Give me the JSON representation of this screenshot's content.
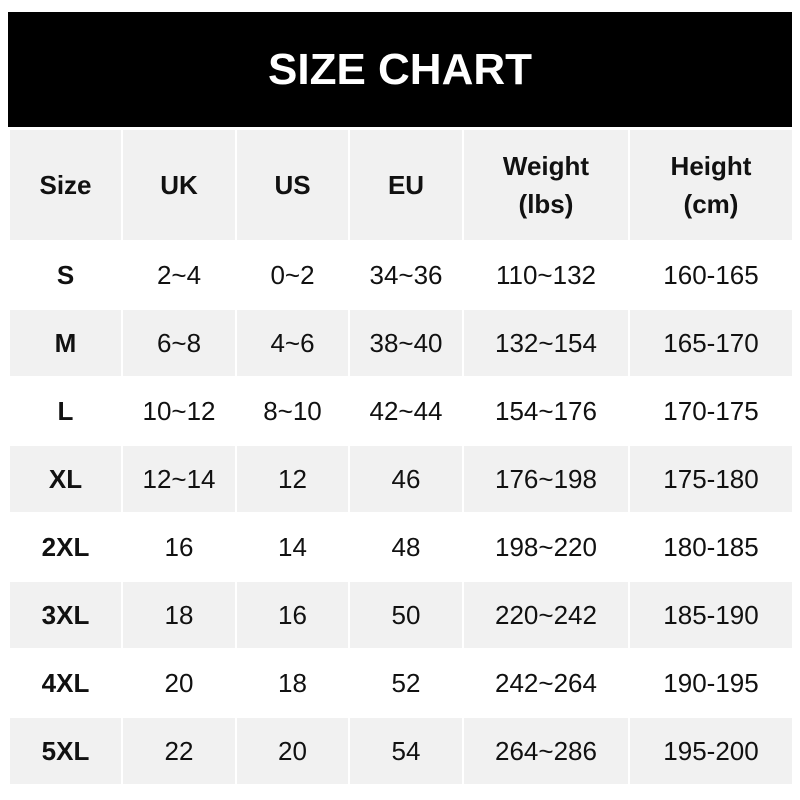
{
  "title": "SIZE CHART",
  "headers": [
    "Size",
    "UK",
    "US",
    "EU",
    "Weight\n(lbs)",
    "Height\n(cm)"
  ],
  "rows": [
    [
      "S",
      "2~4",
      "0~2",
      "34~36",
      "110~132",
      "160-165"
    ],
    [
      "M",
      "6~8",
      "4~6",
      "38~40",
      "132~154",
      "165-170"
    ],
    [
      "L",
      "10~12",
      "8~10",
      "42~44",
      "154~176",
      "170-175"
    ],
    [
      "XL",
      "12~14",
      "12",
      "46",
      "176~198",
      "175-180"
    ],
    [
      "2XL",
      "16",
      "14",
      "48",
      "198~220",
      "180-185"
    ],
    [
      "3XL",
      "18",
      "16",
      "50",
      "220~242",
      "185-190"
    ],
    [
      "4XL",
      "20",
      "18",
      "52",
      "242~264",
      "190-195"
    ],
    [
      "5XL",
      "22",
      "20",
      "54",
      "264~286",
      "195-200"
    ]
  ],
  "colors": {
    "header_bg": "#000000",
    "stripe": "#f1f1f1"
  }
}
